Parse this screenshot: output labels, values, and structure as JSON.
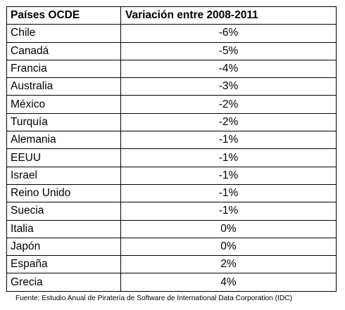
{
  "chart_data": {
    "type": "table",
    "columns": [
      "Países OCDE",
      "Variación entre 2008-2011"
    ],
    "rows": [
      {
        "country": "Chile",
        "value": "-6%"
      },
      {
        "country": "Canadá",
        "value": "-5%"
      },
      {
        "country": "Francia",
        "value": "-4%"
      },
      {
        "country": "Australia",
        "value": "-3%"
      },
      {
        "country": "México",
        "value": "-2%"
      },
      {
        "country": "Turquía",
        "value": "-2%"
      },
      {
        "country": "Alemania",
        "value": "-1%"
      },
      {
        "country": "EEUU",
        "value": "-1%"
      },
      {
        "country": "Israel",
        "value": "-1%"
      },
      {
        "country": "Reino Unido",
        "value": "-1%"
      },
      {
        "country": "Suecia",
        "value": "-1%"
      },
      {
        "country": "Italia",
        "value": "0%"
      },
      {
        "country": "Japón",
        "value": "0%"
      },
      {
        "country": "España",
        "value": "2%"
      },
      {
        "country": "Grecia",
        "value": "4%"
      }
    ],
    "values": [
      -6,
      -5,
      -4,
      -3,
      -2,
      -2,
      -1,
      -1,
      -1,
      -1,
      -1,
      0,
      0,
      2,
      4
    ],
    "unit": "%"
  },
  "source_note": "Fuente: Estudio Anual de Piratería de Software de International Data Corporation (IDC)"
}
